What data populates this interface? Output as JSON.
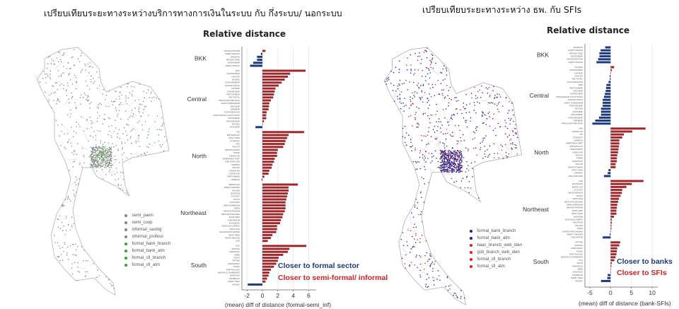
{
  "left": {
    "title": "เปรียบเทียบระยะทางระหว่างบริการทางการเงินในระบบ กับ กึ่งระบบ/ นอกระบบ",
    "legend": [
      {
        "label": "semi_pawn",
        "color": "#8a8a8a"
      },
      {
        "label": "semi_coop",
        "color": "#8a8a8a"
      },
      {
        "label": "informal_saving",
        "color": "#8a8a8a"
      },
      {
        "label": "informal_profess",
        "color": "#8a8a8a"
      },
      {
        "label": "formal_bank_branch",
        "color": "#3aa63a"
      },
      {
        "label": "formal_bank_atm",
        "color": "#3aa63a"
      },
      {
        "label": "formal_sfi_branch",
        "color": "#3aa63a"
      },
      {
        "label": "formal_sfi_atm",
        "color": "#3aa63a"
      }
    ],
    "annotations": {
      "negative": "Closer to formal sector",
      "positive": "Closer to semi-formal/ informal"
    }
  },
  "right": {
    "title": "เปรียบเทียบระยะทางระหว่าง ธพ. กับ SFIs",
    "legend": [
      {
        "label": "formal_bank_branch",
        "color": "#1a2a9c"
      },
      {
        "label": "formal_bank_atm",
        "color": "#1a2a9c"
      },
      {
        "label": "baac_branch_web_iden",
        "color": "#e02424"
      },
      {
        "label": "gsb_branch_web_iden",
        "color": "#e02424"
      },
      {
        "label": "formal_sfi_branch",
        "color": "#e02424"
      },
      {
        "label": "formal_sfi_atm",
        "color": "#e02424"
      }
    ],
    "annotations": {
      "negative": "Closer to banks",
      "positive": "Closer to SFIs"
    }
  },
  "colors": {
    "negative": "#1f3a78",
    "positive": "#9b2a2e",
    "grid": "#e4eef0"
  },
  "chart_data": [
    {
      "type": "bar",
      "orientation": "horizontal",
      "title": "Relative distance",
      "xlabel": "(mean) diff of distance (formal-semi_inf)",
      "xticks": [
        -2,
        0,
        2,
        4,
        6
      ],
      "xlim": [
        -2.6,
        6.6
      ],
      "groups": [
        {
          "name": "BKK",
          "provinces": [
            "NAKHON PATHOM",
            "SAMUT SAKHON",
            "BANGKOK",
            "PATHUM THANI",
            "NONTHABURI",
            "SAMUT PRAKAN"
          ],
          "values": [
            0.4,
            -0.2,
            -0.7,
            -0.7,
            -1.2,
            -1.6
          ]
        },
        {
          "name": "Central",
          "provinces": [
            "TRAT",
            "CHANTHABURI",
            "CHAI NAT",
            "SA KAEO",
            "KANCHANABURI",
            "NAKHON NAYOK",
            "LOP BURI",
            "SUPHAN BURI",
            "PHETCHABURI",
            "ANG THONG",
            "PRACHUAP KHIRI KHAN",
            "SAMUT SONGKHRAM",
            "SING BURI",
            "SARABURI",
            "CHACHOENGSAO",
            "PHRA NAKHON SI AYUTTHAYA",
            "RATCHABURI",
            "PRACHIN BURI",
            "RAYONG",
            "CHON BURI"
          ],
          "values": [
            5.6,
            3.6,
            3.3,
            2.9,
            2.5,
            2.1,
            1.7,
            1.6,
            1.5,
            1.4,
            1.1,
            0.9,
            0.85,
            0.8,
            0.55,
            0.5,
            0.5,
            0.2,
            0.03,
            -0.9
          ]
        },
        {
          "name": "North",
          "provinces": [
            "TAK",
            "PHITSANULOK",
            "UTHAI THANI",
            "UTTARADIT",
            "NAN",
            "PHICHIT",
            "NAKHON SAWAN",
            "PHRAE",
            "SUKHOTHAI",
            "KAMPHAENG PHET",
            "MAE HONG SON",
            "LAMPANG",
            "PHAYAO",
            "CHIANG RAI",
            "CHIANG MAI",
            "PHETCHABUN",
            "LAMPHUN"
          ],
          "values": [
            5.4,
            3.4,
            3.2,
            3.0,
            2.9,
            2.7,
            2.0,
            1.9,
            1.9,
            1.6,
            1.5,
            1.3,
            1.2,
            0.9,
            0.8,
            0.25,
            -0.1
          ]
        },
        {
          "name": "Northeast",
          "provinces": [
            "BUENG KAN",
            "AMNAT CHAROEN",
            "KALASIN",
            "BURI RAM",
            "SI SA KET",
            "ROI ET",
            "YASOTHON",
            "MAHA SARAKHAM",
            "SURIN",
            "NAKHON PHANOM",
            "UBON RATCHATHANI",
            "KHON KAEN",
            "CHAIYAPHUM",
            "MUKDAHAN",
            "NONG BUA LAMPHU",
            "NONG KHAI",
            "NAKHON RATCHASIMA",
            "UDON THANI",
            "SAKON NAKHON",
            "LOEI"
          ],
          "values": [
            4.6,
            3.4,
            3.4,
            3.3,
            3.2,
            3.1,
            3.0,
            3.0,
            3.0,
            2.9,
            2.7,
            2.6,
            2.4,
            2.3,
            1.9,
            1.9,
            1.8,
            1.3,
            1.1,
            0.7
          ]
        },
        {
          "name": "South",
          "provinces": [
            "YALA",
            "RANONG",
            "PHANGNGA",
            "KRABI",
            "SATUN",
            "PATTANI",
            "NARATHIWAT",
            "TRANG",
            "PHATTHALUNG",
            "NAKHON SI THAMMARAT",
            "SONGKHLA",
            "CHUMPHON",
            "SURAT THANI",
            "PHUKET"
          ],
          "values": [
            5.7,
            3.5,
            3.3,
            2.7,
            2.1,
            2.0,
            1.8,
            1.5,
            1.1,
            0.9,
            0.8,
            0.6,
            0.4,
            -1.9
          ]
        }
      ]
    },
    {
      "type": "bar",
      "orientation": "horizontal",
      "title": "Relative distance",
      "xlabel": "(mean) diff of distance (bank-SFIs)",
      "xticks": [
        -5,
        0,
        5,
        10
      ],
      "xlim": [
        -6.2,
        11.2
      ],
      "groups": [
        {
          "name": "BKK",
          "provinces": [
            "BANGKOK",
            "SAMUT SAKHON",
            "PATHUM THANI",
            "NONTHABURI",
            "NAKHON PATHOM",
            "SAMUT PRAKAN"
          ],
          "values": [
            -1.3,
            -2.4,
            -2.7,
            -2.7,
            -3.0,
            -3.4
          ]
        },
        {
          "name": "Central",
          "provinces": [
            "SA KAEO",
            "CHANTHABURI",
            "LOP BURI",
            "CHAI NAT",
            "ANG THONG",
            "CHACHOENGSAO",
            "TRAT",
            "PHETCHABURI",
            "SING BURI",
            "SUPHAN BURI",
            "PHRA NAKHON SI AYUTTHAYA",
            "NAKHON NAYOK",
            "SAMUT SONGKHRAM",
            "PRACHIN BURI",
            "RAYONG",
            "CHON BURI",
            "RATCHABURI",
            "KANCHANABURI",
            "SARABURI",
            "PRACHUAP KHIRI KHAN"
          ],
          "values": [
            0.85,
            0.3,
            0.05,
            -0.2,
            -0.2,
            -0.5,
            -1.0,
            -1.1,
            -1.2,
            -1.4,
            -1.6,
            -1.9,
            -1.9,
            -1.9,
            -2.3,
            -2.3,
            -2.3,
            -2.8,
            -3.7,
            -4.4
          ]
        },
        {
          "name": "North",
          "provinces": [
            "NAN",
            "CHIANG MAI",
            "TAK",
            "UTTARADIT",
            "LAMPHUN",
            "KAMPHAENG PHET",
            "PHITSANULOK",
            "PHETCHABUN",
            "CHIANG RAI",
            "PHAYAO",
            "PHRAE",
            "SUKHOTHAI",
            "PHICHIT",
            "NAKHON SAWAN",
            "UTHAI THANI",
            "LAMPANG",
            "MAE HONG SON"
          ],
          "values": [
            8.4,
            5.2,
            3.2,
            2.8,
            2.1,
            2.1,
            2.0,
            1.9,
            1.8,
            1.6,
            1.5,
            1.5,
            1.2,
            1.2,
            -0.5,
            -0.7,
            -1.6
          ]
        },
        {
          "name": "Northeast",
          "provinces": [
            "LOEI",
            "MUKDAHAN",
            "BUENG KAN",
            "SI SA KET",
            "SAKON NAKHON",
            "ROI ET",
            "NONG KHAI",
            "UBON RATCHATHANI",
            "MAHA SARAKHAM",
            "NAKHON PHANOM",
            "KHON KAEN",
            "UDON THANI",
            "BURI RAM",
            "NONG BUA LAMPHU",
            "YASOTHON",
            "KALASIN",
            "SURIN",
            "NAKHON RATCHASIMA",
            "AMNAT CHAROEN",
            "CHAIYAPHUM"
          ],
          "values": [
            7.9,
            5.1,
            3.8,
            2.8,
            2.7,
            2.4,
            2.0,
            1.8,
            1.6,
            1.5,
            1.4,
            1.4,
            0.8,
            0.3,
            0.3,
            0.2,
            0.2,
            0.05,
            -0.2,
            -1.9
          ]
        },
        {
          "name": "South",
          "provinces": [
            "PATTANI",
            "RANONG",
            "NARATHIWAT",
            "TRANG",
            "PHATTHALUNG",
            "NAKHON SI THAMMARAT",
            "YALA",
            "SATUN",
            "PHANGNGA",
            "KRABI",
            "SONGKHLA",
            "CHUMPHON",
            "SURAT THANI",
            "PHUKET"
          ],
          "values": [
            2.3,
            2.1,
            1.6,
            1.5,
            1.4,
            1.2,
            0.9,
            0.3,
            0.2,
            0.05,
            0.0,
            -0.7,
            -0.8,
            -2.3
          ]
        }
      ]
    }
  ]
}
